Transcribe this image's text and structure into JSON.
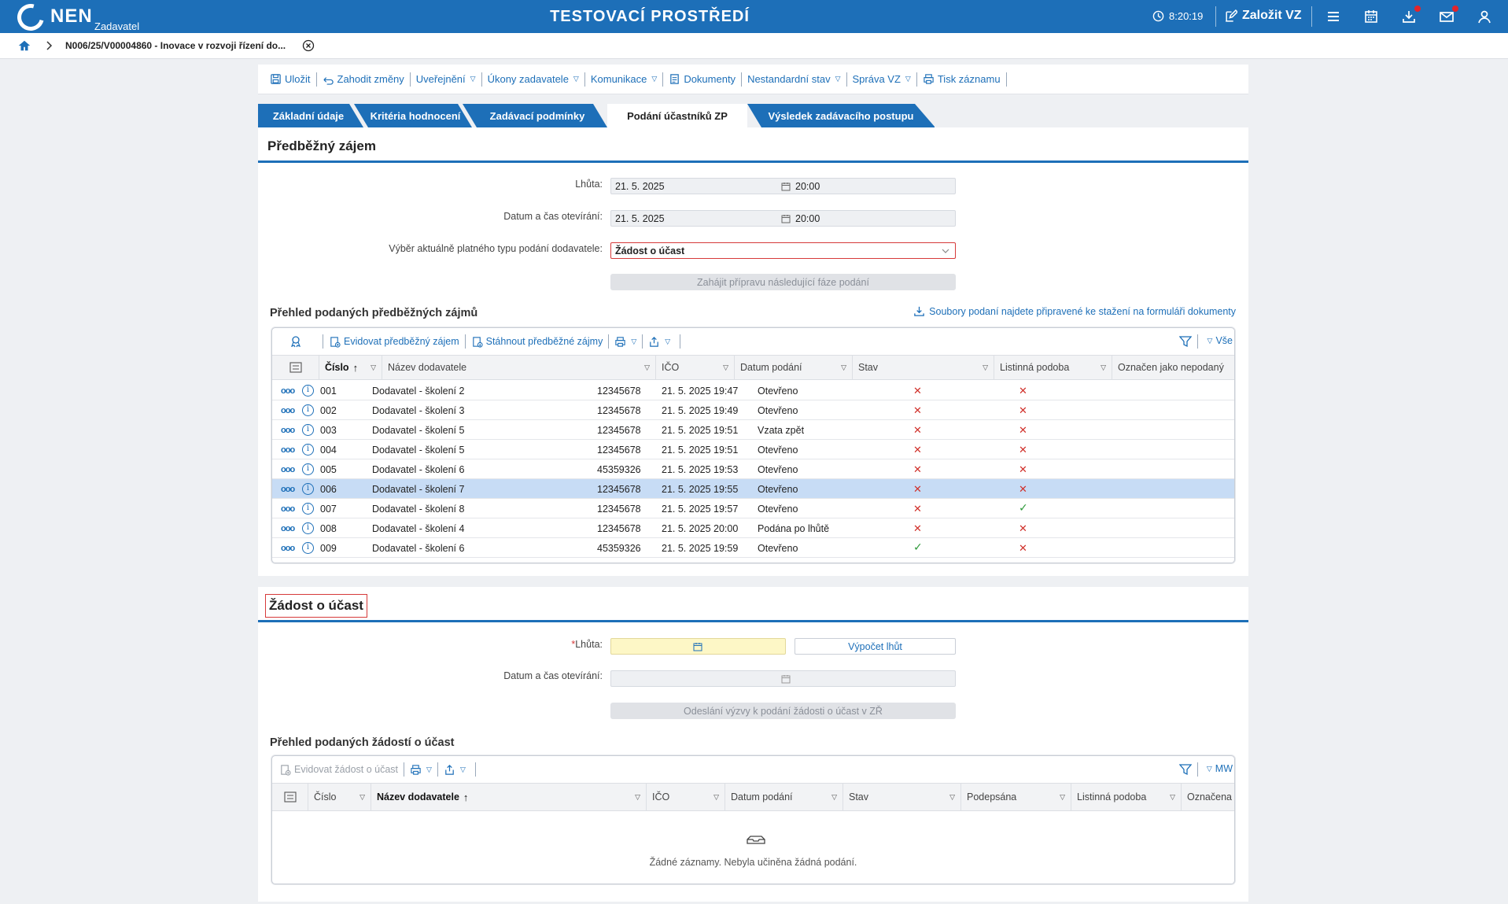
{
  "app": {
    "logo_text": "NEN",
    "logo_sub": "Zadavatel",
    "env_title": "TESTOVACÍ PROSTŘEDÍ",
    "time": "8:20:19",
    "create_label": "Založit VZ"
  },
  "breadcrumb": {
    "current": "N006/25/V00004860 - Inovace v rozvoji řízení do..."
  },
  "toolbar": {
    "save": "Uložit",
    "discard": "Zahodit změny",
    "publish": "Uveřejnění",
    "actions": "Úkony zadavatele",
    "communication": "Komunikace",
    "documents": "Dokumenty",
    "nonstandard": "Nestandardní stav",
    "management": "Správa VZ",
    "print": "Tisk záznamu"
  },
  "tabs": [
    {
      "label": "Základní údaje"
    },
    {
      "label": "Kritéria hodnocení"
    },
    {
      "label": "Zadávací podmínky"
    },
    {
      "label": "Podání účastníků ZP"
    },
    {
      "label": "Výsledek zadávacího postupu"
    }
  ],
  "interest": {
    "title": "Předběžný zájem",
    "deadline_label": "Lhůta:",
    "deadline_date": "21. 5. 2025",
    "deadline_time": "20:00",
    "opening_label": "Datum a čas otevírání:",
    "opening_date": "21. 5. 2025",
    "opening_time": "20:00",
    "type_label": "Výběr aktuálně platného typu podání dodavatele:",
    "type_value": "Žádost o účast",
    "start_button": "Zahájit přípravu následující fáze podání",
    "overview_title": "Přehled podaných předběžných zájmů",
    "files_link": "Soubory podaní najdete připravené ke stažení na formuláři dokumenty",
    "grid_actions": {
      "register": "Evidovat předběžný zájem",
      "download": "Stáhnout předběžné zájmy",
      "view": "Vše"
    },
    "columns": [
      "Číslo",
      "Název dodavatele",
      "IČO",
      "Datum podání",
      "Stav",
      "Listinná podoba",
      "Označen jako nepodaný"
    ],
    "rows": [
      {
        "no": "001",
        "supplier": "Dodavatel - školení 2",
        "ico": "12345678",
        "date": "21. 5. 2025 19:47",
        "state": "Otevřeno",
        "paper": false,
        "unsubmitted": false
      },
      {
        "no": "002",
        "supplier": "Dodavatel - školení 3",
        "ico": "12345678",
        "date": "21. 5. 2025 19:49",
        "state": "Otevřeno",
        "paper": false,
        "unsubmitted": false
      },
      {
        "no": "003",
        "supplier": "Dodavatel - školení 5",
        "ico": "12345678",
        "date": "21. 5. 2025 19:51",
        "state": "Vzata zpět",
        "paper": false,
        "unsubmitted": false
      },
      {
        "no": "004",
        "supplier": "Dodavatel - školení 5",
        "ico": "12345678",
        "date": "21. 5. 2025 19:51",
        "state": "Otevřeno",
        "paper": false,
        "unsubmitted": false
      },
      {
        "no": "005",
        "supplier": "Dodavatel - školení 6",
        "ico": "45359326",
        "date": "21. 5. 2025 19:53",
        "state": "Otevřeno",
        "paper": false,
        "unsubmitted": false
      },
      {
        "no": "006",
        "supplier": "Dodavatel - školení 7",
        "ico": "12345678",
        "date": "21. 5. 2025 19:55",
        "state": "Otevřeno",
        "paper": false,
        "unsubmitted": false,
        "selected": true
      },
      {
        "no": "007",
        "supplier": "Dodavatel - školení 8",
        "ico": "12345678",
        "date": "21. 5. 2025 19:57",
        "state": "Otevřeno",
        "paper": false,
        "unsubmitted": true
      },
      {
        "no": "008",
        "supplier": "Dodavatel - školení 4",
        "ico": "12345678",
        "date": "21. 5. 2025 20:00",
        "state": "Podána po lhůtě",
        "paper": false,
        "unsubmitted": false
      },
      {
        "no": "009",
        "supplier": "Dodavatel - školení 6",
        "ico": "45359326",
        "date": "21. 5. 2025 19:59",
        "state": "Otevřeno",
        "paper": true,
        "unsubmitted": false
      }
    ]
  },
  "request": {
    "title": "Žádost o účast",
    "deadline_label": "Lhůta:",
    "calc_button": "Výpočet lhůt",
    "opening_label": "Datum a čas otevírání:",
    "send_button": "Odeslání výzvy k podání žádosti o účast v ZŘ",
    "overview_title": "Přehled podaných žádostí o účast",
    "grid_actions": {
      "register": "Evidovat žádost o účast",
      "view": "MW"
    },
    "columns": [
      "Číslo",
      "Název dodavatele",
      "IČO",
      "Datum podání",
      "Stav",
      "Podepsána",
      "Listinná podoba",
      "Označena"
    ],
    "empty_text": "Žádné záznamy. Nebyla učiněna žádná podání."
  },
  "colors": {
    "brand": "#1d6fb8",
    "error": "#d0302a",
    "success": "#2e9a3a"
  }
}
